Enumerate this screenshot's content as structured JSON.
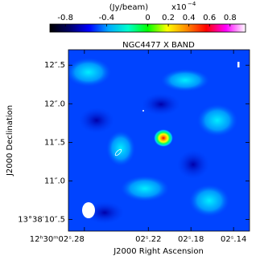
{
  "chart_data": {
    "type": "image",
    "title": "NGC4477 X BAND",
    "colorbar_label": "(Jy/beam)",
    "colorbar_scale": "x10",
    "colorbar_exponent": "−4",
    "clim": [
      -0.95,
      0.95
    ],
    "cticks": [
      -0.8,
      -0.4,
      0,
      0.2,
      0.4,
      0.6,
      0.8
    ],
    "colors": [
      "#000000",
      "#000066",
      "#0000ff",
      "#00aaff",
      "#00ffcc",
      "#00ff00",
      "#ffff00",
      "#ff8800",
      "#ff0000",
      "#ff00ff",
      "#ffffff"
    ],
    "xlabel": "J2000 Right Ascension",
    "ylabel": "J2000 Declination",
    "xlim": [
      2.295,
      2.125
    ],
    "xticks": [
      {
        "value": 2.28,
        "label": "12ʰ30ᵐ02ˢ.28"
      },
      {
        "value": 2.22,
        "label": "02ˢ.22"
      },
      {
        "value": 2.18,
        "label": "02ˢ.18"
      },
      {
        "value": 2.14,
        "label": "02ˢ.14"
      }
    ],
    "ylim": [
      10.35,
      12.7
    ],
    "yticks": [
      {
        "value": 12.5,
        "label": "12″.5"
      },
      {
        "value": 12.0,
        "label": "12″.0"
      },
      {
        "value": 11.5,
        "label": "11″.5"
      },
      {
        "value": 11.0,
        "label": "11″.0"
      },
      {
        "value": 10.5,
        "label": "13°38′10″.5"
      }
    ]
  }
}
